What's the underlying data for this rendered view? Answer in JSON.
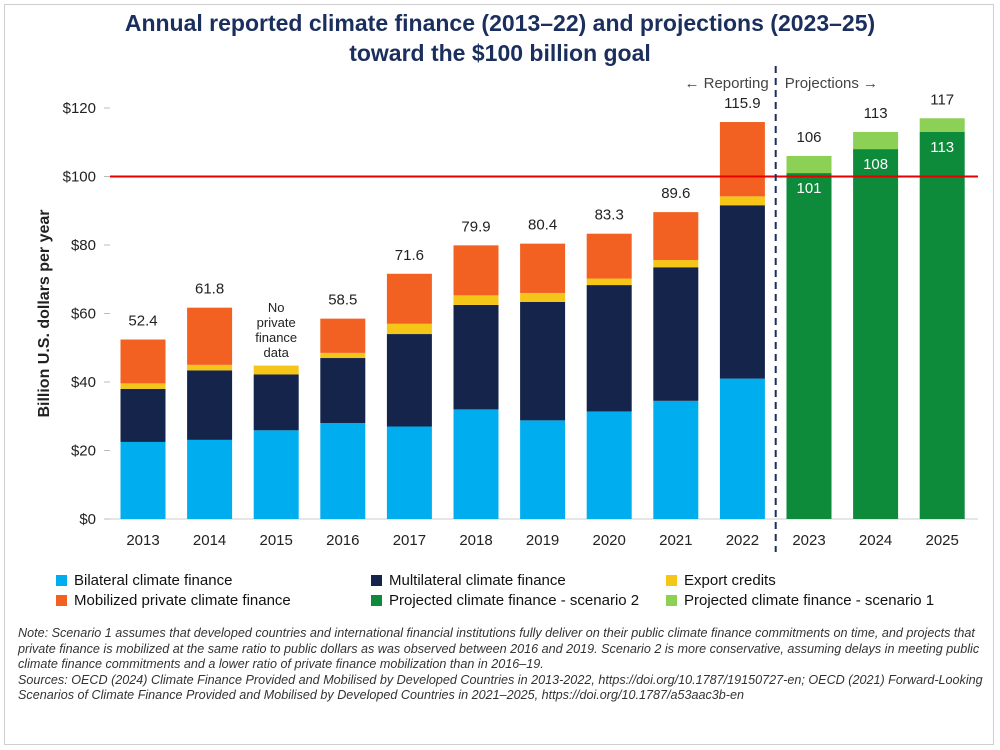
{
  "title_line1": "Annual reported climate finance (2013–22) and projections (2023–25)",
  "title_line2": "toward the $100 billion goal",
  "colors": {
    "bilateral": "#00aeef",
    "multilateral": "#15244a",
    "export": "#f5c518",
    "mobilized": "#f26122",
    "scenario2": "#0d8a3a",
    "scenario1": "#8cd055",
    "goal_line": "#e60000",
    "divider": "#1b2f5e",
    "title": "#1b2f5e"
  },
  "chart_data": {
    "type": "bar",
    "stacked": true,
    "title": "Annual reported climate finance (2013–22) and projections (2023–25) toward the $100 billion goal",
    "ylabel": "Billion U.S. dollars per year",
    "xlabel": "",
    "ylim": [
      0,
      120
    ],
    "yticks": [
      0,
      20,
      40,
      60,
      80,
      100,
      120
    ],
    "ytick_labels": [
      "$0",
      "$20",
      "$40",
      "$60",
      "$80",
      "$100",
      "$120"
    ],
    "categories": [
      "2013",
      "2014",
      "2015",
      "2016",
      "2017",
      "2018",
      "2019",
      "2020",
      "2021",
      "2022",
      "2023",
      "2024",
      "2025"
    ],
    "series": [
      {
        "name": "Bilateral climate finance",
        "key": "bilateral",
        "values": [
          22.5,
          23.1,
          25.9,
          28.0,
          27.0,
          32.0,
          28.8,
          31.4,
          34.5,
          41.0,
          null,
          null,
          null
        ]
      },
      {
        "name": "Multilateral climate finance",
        "key": "multilateral",
        "values": [
          15.5,
          20.3,
          16.3,
          19.0,
          27.0,
          30.5,
          34.6,
          36.9,
          39.0,
          50.6,
          null,
          null,
          null
        ]
      },
      {
        "name": "Export credits",
        "key": "export",
        "values": [
          1.6,
          1.6,
          2.6,
          1.5,
          3.0,
          2.8,
          2.6,
          1.9,
          2.1,
          2.6,
          null,
          null,
          null
        ]
      },
      {
        "name": "Mobilized private climate finance",
        "key": "mobilized",
        "values": [
          12.8,
          16.7,
          null,
          10.0,
          14.6,
          14.6,
          14.4,
          13.1,
          14.0,
          21.7,
          null,
          null,
          null
        ]
      },
      {
        "name": "Projected climate finance - scenario 2",
        "key": "scenario2",
        "values": [
          null,
          null,
          null,
          null,
          null,
          null,
          null,
          null,
          null,
          null,
          101,
          108,
          113
        ]
      },
      {
        "name": "Projected climate finance - scenario 1",
        "key": "scenario1",
        "values": [
          null,
          null,
          null,
          null,
          null,
          null,
          null,
          null,
          null,
          null,
          5,
          5,
          4
        ]
      }
    ],
    "totals": [
      "52.4",
      "61.8",
      "",
      "58.5",
      "71.6",
      "79.9",
      "80.4",
      "83.3",
      "89.6",
      "115.9",
      "106",
      "113",
      "117"
    ],
    "inner_labels": [
      "",
      "",
      "",
      "",
      "",
      "",
      "",
      "",
      "",
      "",
      "101",
      "108",
      "113"
    ],
    "goal_line": 100,
    "annotation_2015": [
      "No",
      "private",
      "finance",
      "data"
    ],
    "reporting_label": "← Reporting",
    "projections_label": "Projections →"
  },
  "legend": [
    {
      "label": "Bilateral climate finance",
      "color_key": "bilateral"
    },
    {
      "label": "Multilateral climate finance",
      "color_key": "multilateral"
    },
    {
      "label": "Export credits",
      "color_key": "export"
    },
    {
      "label": "Mobilized private climate finance",
      "color_key": "mobilized"
    },
    {
      "label": "Projected climate finance - scenario 2",
      "color_key": "scenario2"
    },
    {
      "label": "Projected climate finance - scenario 1",
      "color_key": "scenario1"
    }
  ],
  "notes": [
    "Note: Scenario 1 assumes that developed countries and international financial institutions fully deliver on their public climate finance commitments on time, and projects that private finance is mobilized at the same ratio to public dollars as was observed between 2016 and 2019. Scenario 2 is more conservative, assuming delays in meeting public climate finance commitments and a lower ratio of private finance mobilization than in 2016–19.",
    "Sources: OECD (2024) Climate Finance Provided and Mobilised by Developed Countries in 2013-2022, https://doi.org/10.1787/19150727-en; OECD (2021) Forward-Looking Scenarios of Climate Finance Provided and Mobilised by Developed Countries in 2021–2025, https://doi.org/10.1787/a53aac3b-en"
  ]
}
